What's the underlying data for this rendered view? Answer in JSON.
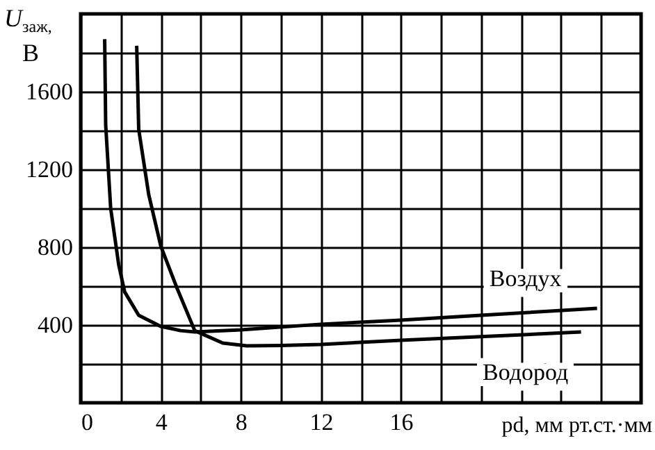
{
  "chart_data": {
    "type": "line",
    "xlabel": "pd, мм рт.ст.·мм",
    "ylabel": "U$_{заж}$, В",
    "xlim": [
      0,
      28
    ],
    "ylim": [
      0,
      2000
    ],
    "xticks": [
      0,
      {
        "value": 2,
        "label": null
      },
      4,
      {
        "value": 6,
        "label": null
      },
      8,
      {
        "value": 10,
        "label": null
      },
      12,
      {
        "value": 14,
        "label": null
      },
      16,
      {
        "value": 18,
        "label": null
      },
      {
        "value": 20,
        "label": null
      },
      {
        "value": 22,
        "label": null
      },
      {
        "value": 24,
        "label": null
      },
      {
        "value": 26,
        "label": null
      }
    ],
    "yticks": [
      {
        "value": 200,
        "label": null
      },
      400,
      {
        "value": 600,
        "label": null
      },
      800,
      {
        "value": 1000,
        "label": null
      },
      1200,
      {
        "value": 1400,
        "label": null
      },
      1600,
      {
        "value": 1800,
        "label": null
      }
    ],
    "grid": true,
    "marker": "none",
    "line_style": "solid",
    "series": [
      {
        "name": "Воздух",
        "color": "#000000",
        "x": [
          1.2,
          1.25,
          1.5,
          1.9,
          2.2,
          2.9,
          4.0,
          5.0,
          5.7,
          8,
          12,
          16,
          20,
          25.8
        ],
        "values": [
          1870,
          1430,
          1000,
          710,
          570,
          450,
          393,
          371,
          364,
          375,
          404,
          425,
          450,
          486
        ]
      },
      {
        "name": "Водород",
        "color": "#000000",
        "x": [
          2.8,
          2.9,
          3.4,
          4.0,
          4.8,
          5.7,
          7.1,
          8.3,
          10,
          12,
          16,
          20,
          25
        ],
        "values": [
          1836,
          1407,
          1071,
          807,
          593,
          371,
          307,
          293,
          295,
          300,
          321,
          340,
          364
        ]
      }
    ]
  }
}
